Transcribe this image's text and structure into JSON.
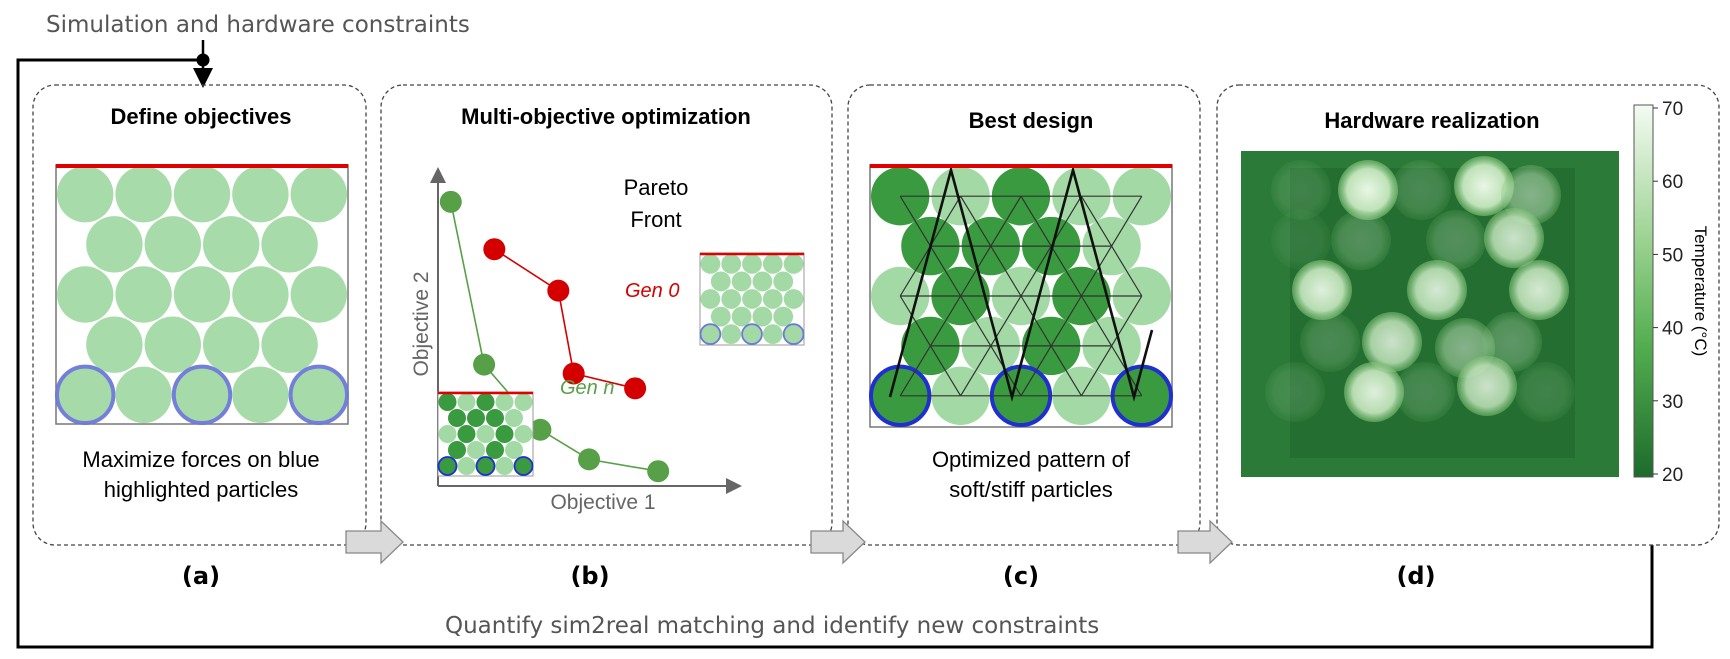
{
  "header": {
    "top_label": "Simulation and hardware constraints",
    "bottom_label": "Quantify sim2real matching and identify new constraints"
  },
  "panels": [
    {
      "id": "a",
      "title": "Define objectives",
      "caption_line1": "Maximize forces on blue",
      "caption_line2": "highlighted particles",
      "tag": "(a)"
    },
    {
      "id": "b",
      "title": "Multi-objective optimization",
      "xlabel": "Objective 1",
      "ylabel": "Objective 2",
      "pareto_line1": "Pareto",
      "pareto_line2": "Front",
      "tag": "(b)"
    },
    {
      "id": "c",
      "title": "Best design",
      "caption_line1": "Optimized pattern of",
      "caption_line2": "soft/stiff particles",
      "tag": "(c)"
    },
    {
      "id": "d",
      "title": "Hardware realization",
      "colorbar_label": "Temperature (°C)",
      "colorbar_ticks": [
        "70",
        "60",
        "50",
        "40",
        "30",
        "20"
      ],
      "tag": "(d)"
    }
  ],
  "chart_data": {
    "type": "line",
    "xlabel": "Objective 1",
    "ylabel": "Objective 2",
    "series": [
      {
        "name": "Gen 0",
        "color": "#d40000",
        "x": [
          0.22,
          0.47,
          0.53,
          0.77
        ],
        "y": [
          0.8,
          0.66,
          0.38,
          0.33
        ]
      },
      {
        "name": "Gen n",
        "color": "#58a048",
        "x": [
          0.05,
          0.18,
          0.4,
          0.59,
          0.86
        ],
        "y": [
          0.96,
          0.41,
          0.19,
          0.09,
          0.05
        ]
      }
    ]
  },
  "colors": {
    "particle_light": "#a3d9a5",
    "particle_dark": "#3a9a3f",
    "highlight_ring": "#1f2fd0",
    "top_bar": "#e00000",
    "arrow_fill": "#dadada"
  }
}
